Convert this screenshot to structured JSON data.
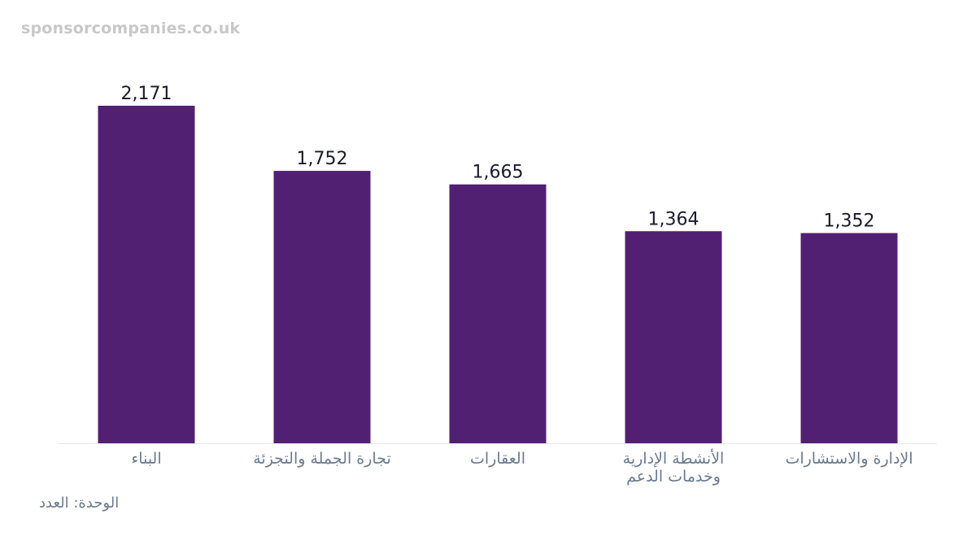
{
  "watermark": "sponsorcompanies.co.uk",
  "unit_note": "الوحدة: العدد",
  "colors": {
    "bar": "#512073",
    "value_label": "#1a1a2e",
    "category_label": "#6b7a90",
    "baseline": "#e8e8ee"
  },
  "chart_data": {
    "type": "bar",
    "title": "",
    "xlabel": "",
    "ylabel": "",
    "grid": false,
    "ylim": [
      0,
      2171
    ],
    "categories": [
      [
        "البناء"
      ],
      [
        "تجارة الجملة والتجزئة"
      ],
      [
        "العقارات"
      ],
      [
        "الأنشطة الإدارية",
        "وخدمات الدعم"
      ],
      [
        "الإدارة والاستشارات"
      ]
    ],
    "values": [
      2171,
      1752,
      1665,
      1364,
      1352
    ],
    "value_labels": [
      "2,171",
      "1,752",
      "1,665",
      "1,364",
      "1,352"
    ]
  }
}
